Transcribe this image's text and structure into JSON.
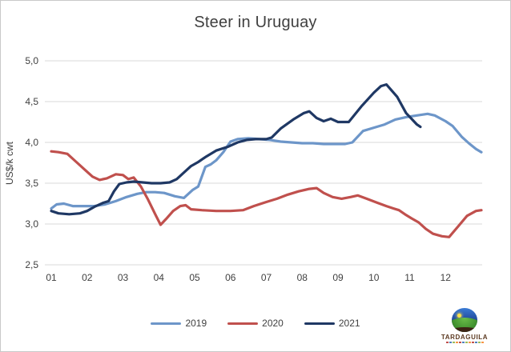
{
  "title": "Steer in Uruguay",
  "y_axis_title": "US$/k cwt",
  "colors": {
    "series_2019": "#6D96C9",
    "series_2020": "#C0504D",
    "series_2021": "#1F3864",
    "gridline": "#D9D9D9",
    "axis_text": "#404040",
    "title_text": "#404040",
    "background": "#FFFFFF",
    "border": "#C9C9C9"
  },
  "logo": {
    "name": "TARDAGUILA",
    "icon": "globe-landscape-icon",
    "subtitle_block_colors": [
      "#c0504d",
      "#4f81bd",
      "#9bbb59",
      "#f79646",
      "#c0504d",
      "#4f81bd",
      "#9bbb59",
      "#f79646",
      "#c0504d",
      "#4f81bd",
      "#9bbb59",
      "#f79646"
    ]
  },
  "chart_data": {
    "type": "line",
    "title": "Steer in Uruguay",
    "xlabel": "",
    "ylabel": "US$/k cwt",
    "ylim": [
      2.5,
      5.0
    ],
    "yticks": [
      5.0,
      4.5,
      4.0,
      3.5,
      3.0,
      2.5
    ],
    "ytick_labels": [
      "5,0",
      "4,5",
      "4,0",
      "3,5",
      "3,0",
      "2,5"
    ],
    "xticks": [
      1,
      2,
      3,
      4,
      5,
      6,
      7,
      8,
      9,
      10,
      11,
      12
    ],
    "xtick_labels": [
      "01",
      "02",
      "03",
      "04",
      "05",
      "06",
      "07",
      "08",
      "09",
      "10",
      "11",
      "12"
    ],
    "xlim": [
      0.85,
      13.1
    ],
    "grid": "horizontal-only",
    "legend_position": "bottom",
    "x_unit": "month (weekly points)",
    "series": [
      {
        "name": "2019",
        "color": "#6D96C9",
        "points": [
          [
            1.0,
            3.19
          ],
          [
            1.15,
            3.24
          ],
          [
            1.35,
            3.25
          ],
          [
            1.6,
            3.22
          ],
          [
            1.9,
            3.22
          ],
          [
            2.2,
            3.22
          ],
          [
            2.5,
            3.24
          ],
          [
            2.8,
            3.28
          ],
          [
            3.1,
            3.33
          ],
          [
            3.4,
            3.37
          ],
          [
            3.65,
            3.39
          ],
          [
            3.9,
            3.39
          ],
          [
            4.15,
            3.38
          ],
          [
            4.45,
            3.34
          ],
          [
            4.7,
            3.32
          ],
          [
            4.95,
            3.42
          ],
          [
            5.1,
            3.46
          ],
          [
            5.3,
            3.7
          ],
          [
            5.45,
            3.73
          ],
          [
            5.6,
            3.78
          ],
          [
            5.8,
            3.88
          ],
          [
            6.0,
            4.01
          ],
          [
            6.2,
            4.04
          ],
          [
            6.5,
            4.05
          ],
          [
            6.8,
            4.04
          ],
          [
            7.1,
            4.03
          ],
          [
            7.4,
            4.01
          ],
          [
            7.7,
            4.0
          ],
          [
            8.0,
            3.99
          ],
          [
            8.3,
            3.99
          ],
          [
            8.6,
            3.98
          ],
          [
            8.9,
            3.98
          ],
          [
            9.2,
            3.98
          ],
          [
            9.4,
            4.0
          ],
          [
            9.7,
            4.14
          ],
          [
            10.0,
            4.18
          ],
          [
            10.3,
            4.22
          ],
          [
            10.6,
            4.28
          ],
          [
            10.9,
            4.31
          ],
          [
            11.2,
            4.33
          ],
          [
            11.5,
            4.35
          ],
          [
            11.7,
            4.33
          ],
          [
            12.0,
            4.26
          ],
          [
            12.2,
            4.2
          ],
          [
            12.45,
            4.07
          ],
          [
            12.65,
            3.99
          ],
          [
            12.85,
            3.92
          ],
          [
            13.0,
            3.88
          ]
        ]
      },
      {
        "name": "2020",
        "color": "#C0504D",
        "points": [
          [
            1.0,
            3.89
          ],
          [
            1.2,
            3.88
          ],
          [
            1.45,
            3.86
          ],
          [
            1.7,
            3.76
          ],
          [
            1.95,
            3.66
          ],
          [
            2.15,
            3.58
          ],
          [
            2.35,
            3.54
          ],
          [
            2.55,
            3.56
          ],
          [
            2.8,
            3.61
          ],
          [
            3.0,
            3.6
          ],
          [
            3.15,
            3.55
          ],
          [
            3.3,
            3.57
          ],
          [
            3.5,
            3.46
          ],
          [
            3.7,
            3.3
          ],
          [
            3.9,
            3.12
          ],
          [
            4.05,
            2.99
          ],
          [
            4.2,
            3.06
          ],
          [
            4.4,
            3.16
          ],
          [
            4.6,
            3.22
          ],
          [
            4.75,
            3.23
          ],
          [
            4.9,
            3.18
          ],
          [
            5.2,
            3.17
          ],
          [
            5.6,
            3.16
          ],
          [
            6.0,
            3.16
          ],
          [
            6.35,
            3.17
          ],
          [
            6.65,
            3.22
          ],
          [
            7.0,
            3.27
          ],
          [
            7.3,
            3.31
          ],
          [
            7.6,
            3.36
          ],
          [
            7.9,
            3.4
          ],
          [
            8.2,
            3.43
          ],
          [
            8.4,
            3.44
          ],
          [
            8.6,
            3.38
          ],
          [
            8.85,
            3.33
          ],
          [
            9.1,
            3.31
          ],
          [
            9.35,
            3.33
          ],
          [
            9.55,
            3.35
          ],
          [
            9.8,
            3.31
          ],
          [
            10.1,
            3.26
          ],
          [
            10.35,
            3.22
          ],
          [
            10.55,
            3.19
          ],
          [
            10.7,
            3.17
          ],
          [
            10.9,
            3.11
          ],
          [
            11.05,
            3.07
          ],
          [
            11.25,
            3.02
          ],
          [
            11.45,
            2.94
          ],
          [
            11.65,
            2.88
          ],
          [
            11.9,
            2.85
          ],
          [
            12.1,
            2.84
          ],
          [
            12.35,
            2.97
          ],
          [
            12.6,
            3.1
          ],
          [
            12.85,
            3.16
          ],
          [
            13.0,
            3.17
          ]
        ]
      },
      {
        "name": "2021",
        "color": "#1F3864",
        "points": [
          [
            1.0,
            3.16
          ],
          [
            1.2,
            3.13
          ],
          [
            1.5,
            3.12
          ],
          [
            1.8,
            3.13
          ],
          [
            2.0,
            3.16
          ],
          [
            2.2,
            3.21
          ],
          [
            2.45,
            3.26
          ],
          [
            2.6,
            3.28
          ],
          [
            2.75,
            3.4
          ],
          [
            2.9,
            3.49
          ],
          [
            3.1,
            3.51
          ],
          [
            3.3,
            3.52
          ],
          [
            3.55,
            3.51
          ],
          [
            3.8,
            3.5
          ],
          [
            4.05,
            3.5
          ],
          [
            4.3,
            3.51
          ],
          [
            4.5,
            3.55
          ],
          [
            4.7,
            3.63
          ],
          [
            4.9,
            3.71
          ],
          [
            5.1,
            3.76
          ],
          [
            5.3,
            3.82
          ],
          [
            5.6,
            3.9
          ],
          [
            5.95,
            3.95
          ],
          [
            6.2,
            4.0
          ],
          [
            6.45,
            4.03
          ],
          [
            6.7,
            4.04
          ],
          [
            7.0,
            4.04
          ],
          [
            7.15,
            4.06
          ],
          [
            7.4,
            4.17
          ],
          [
            7.75,
            4.28
          ],
          [
            8.05,
            4.36
          ],
          [
            8.2,
            4.38
          ],
          [
            8.4,
            4.3
          ],
          [
            8.6,
            4.26
          ],
          [
            8.8,
            4.29
          ],
          [
            9.0,
            4.25
          ],
          [
            9.3,
            4.25
          ],
          [
            9.65,
            4.44
          ],
          [
            10.0,
            4.61
          ],
          [
            10.2,
            4.69
          ],
          [
            10.35,
            4.71
          ],
          [
            10.65,
            4.56
          ],
          [
            10.9,
            4.36
          ],
          [
            11.05,
            4.29
          ],
          [
            11.2,
            4.22
          ],
          [
            11.3,
            4.19
          ]
        ]
      }
    ]
  }
}
